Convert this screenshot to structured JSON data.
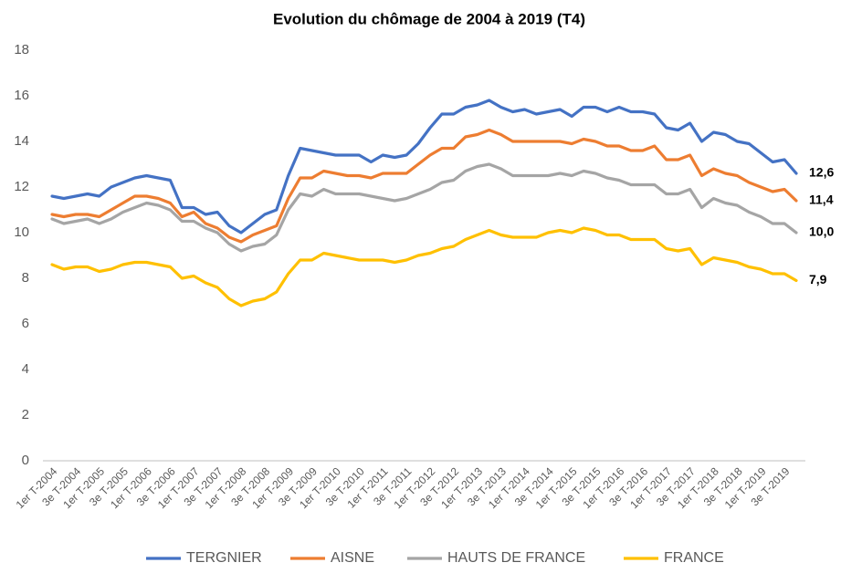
{
  "chart_data": {
    "type": "line",
    "title": "Evolution du chômage  de 2004 à 2019 (T4)",
    "categories": [
      "1er T-2004",
      null,
      "3e T-2004",
      null,
      "1er T-2005",
      null,
      "3e T-2005",
      null,
      "1er T-2006",
      null,
      "3e T-2006",
      null,
      "1er T-2007",
      null,
      "3e T-2007",
      null,
      "1er T-2008",
      null,
      "3e T-2008",
      null,
      "1er T-2009",
      null,
      "3e T-2009",
      null,
      "1er T-2010",
      null,
      "3e T-2010",
      null,
      "1er T-2011",
      null,
      "3e T-2011",
      null,
      "1er T-2012",
      null,
      "3e T-2012",
      null,
      "1er T-2013",
      null,
      "3e T-2013",
      null,
      "1er T-2014",
      null,
      "3e T-2014",
      null,
      "1er T-2015",
      null,
      "3e T-2015",
      null,
      "1er T-2016",
      null,
      "3e T-2016",
      null,
      "1er T-2017",
      null,
      "3e T-2017",
      null,
      "1er T-2018",
      null,
      "3e T-2018",
      null,
      "1er T-2019",
      null,
      "3e T-2019",
      null
    ],
    "series": [
      {
        "name": "TERGNIER",
        "color": "#4472c4",
        "values": [
          11.6,
          11.5,
          11.6,
          11.7,
          11.6,
          12.0,
          12.2,
          12.4,
          12.5,
          12.4,
          12.3,
          11.1,
          11.1,
          10.8,
          10.9,
          10.3,
          10.0,
          10.4,
          10.8,
          11.0,
          12.5,
          13.7,
          13.6,
          13.5,
          13.4,
          13.4,
          13.4,
          13.1,
          13.4,
          13.3,
          13.4,
          13.9,
          14.6,
          15.2,
          15.2,
          15.5,
          15.6,
          15.8,
          15.5,
          15.3,
          15.4,
          15.2,
          15.3,
          15.4,
          15.1,
          15.5,
          15.5,
          15.3,
          15.5,
          15.3,
          15.3,
          15.2,
          14.6,
          14.5,
          14.8,
          14.0,
          14.4,
          14.3,
          14.0,
          13.9,
          13.5,
          13.1,
          13.2,
          12.6
        ],
        "value_labels": [
          null,
          null,
          null,
          null,
          null,
          null,
          null,
          null,
          null,
          null,
          null,
          null,
          null,
          null,
          null,
          null,
          null,
          null,
          null,
          null,
          null,
          null,
          null,
          null,
          null,
          null,
          null,
          null,
          null,
          null,
          null,
          null,
          null,
          null,
          null,
          null,
          null,
          null,
          null,
          null,
          null,
          null,
          null,
          null,
          null,
          null,
          null,
          null,
          null,
          null,
          null,
          null,
          null,
          null,
          null,
          null,
          null,
          null,
          null,
          null,
          null,
          null,
          null,
          "12,6"
        ]
      },
      {
        "name": "AISNE",
        "color": "#ed7d31",
        "values": [
          10.8,
          10.7,
          10.8,
          10.8,
          10.7,
          11.0,
          11.3,
          11.6,
          11.6,
          11.5,
          11.3,
          10.7,
          10.9,
          10.4,
          10.2,
          9.8,
          9.6,
          9.9,
          10.1,
          10.3,
          11.5,
          12.4,
          12.4,
          12.7,
          12.6,
          12.5,
          12.5,
          12.4,
          12.6,
          12.6,
          12.6,
          13.0,
          13.4,
          13.7,
          13.7,
          14.2,
          14.3,
          14.5,
          14.3,
          14.0,
          14.0,
          14.0,
          14.0,
          14.0,
          13.9,
          14.1,
          14.0,
          13.8,
          13.8,
          13.6,
          13.6,
          13.8,
          13.2,
          13.2,
          13.4,
          12.5,
          12.8,
          12.6,
          12.5,
          12.2,
          12.0,
          11.8,
          11.9,
          11.4
        ],
        "value_labels": [
          null,
          null,
          null,
          null,
          null,
          null,
          null,
          null,
          null,
          null,
          null,
          null,
          null,
          null,
          null,
          null,
          null,
          null,
          null,
          null,
          null,
          null,
          null,
          null,
          null,
          null,
          null,
          null,
          null,
          null,
          null,
          null,
          null,
          null,
          null,
          null,
          null,
          null,
          null,
          null,
          null,
          null,
          null,
          null,
          null,
          null,
          null,
          null,
          null,
          null,
          null,
          null,
          null,
          null,
          null,
          null,
          null,
          null,
          null,
          null,
          null,
          null,
          null,
          "11,4"
        ]
      },
      {
        "name": "HAUTS DE FRANCE",
        "color": "#a5a5a5",
        "values": [
          10.6,
          10.4,
          10.5,
          10.6,
          10.4,
          10.6,
          10.9,
          11.1,
          11.3,
          11.2,
          11.0,
          10.5,
          10.5,
          10.2,
          10.0,
          9.5,
          9.2,
          9.4,
          9.5,
          9.9,
          11.0,
          11.7,
          11.6,
          11.9,
          11.7,
          11.7,
          11.7,
          11.6,
          11.5,
          11.4,
          11.5,
          11.7,
          11.9,
          12.2,
          12.3,
          12.7,
          12.9,
          13.0,
          12.8,
          12.5,
          12.5,
          12.5,
          12.5,
          12.6,
          12.5,
          12.7,
          12.6,
          12.4,
          12.3,
          12.1,
          12.1,
          12.1,
          11.7,
          11.7,
          11.9,
          11.1,
          11.5,
          11.3,
          11.2,
          10.9,
          10.7,
          10.4,
          10.4,
          10.0
        ],
        "value_labels": [
          null,
          null,
          null,
          null,
          null,
          null,
          null,
          null,
          null,
          null,
          null,
          null,
          null,
          null,
          null,
          null,
          null,
          null,
          null,
          null,
          null,
          null,
          null,
          null,
          null,
          null,
          null,
          null,
          null,
          null,
          null,
          null,
          null,
          null,
          null,
          null,
          null,
          null,
          null,
          null,
          null,
          null,
          null,
          null,
          null,
          null,
          null,
          null,
          null,
          null,
          null,
          null,
          null,
          null,
          null,
          null,
          null,
          null,
          null,
          null,
          null,
          null,
          null,
          "10,0"
        ]
      },
      {
        "name": "FRANCE",
        "color": "#ffc000",
        "values": [
          8.6,
          8.4,
          8.5,
          8.5,
          8.3,
          8.4,
          8.6,
          8.7,
          8.7,
          8.6,
          8.5,
          8.0,
          8.1,
          7.8,
          7.6,
          7.1,
          6.8,
          7.0,
          7.1,
          7.4,
          8.2,
          8.8,
          8.8,
          9.1,
          9.0,
          8.9,
          8.8,
          8.8,
          8.8,
          8.7,
          8.8,
          9.0,
          9.1,
          9.3,
          9.4,
          9.7,
          9.9,
          10.1,
          9.9,
          9.8,
          9.8,
          9.8,
          10.0,
          10.1,
          10.0,
          10.2,
          10.1,
          9.9,
          9.9,
          9.7,
          9.7,
          9.7,
          9.3,
          9.2,
          9.3,
          8.6,
          8.9,
          8.8,
          8.7,
          8.5,
          8.4,
          8.2,
          8.2,
          7.9
        ],
        "value_labels": [
          null,
          null,
          null,
          null,
          null,
          null,
          null,
          null,
          null,
          null,
          null,
          null,
          null,
          null,
          null,
          null,
          null,
          null,
          null,
          null,
          null,
          null,
          null,
          null,
          null,
          null,
          null,
          null,
          null,
          null,
          null,
          null,
          null,
          null,
          null,
          null,
          null,
          null,
          null,
          null,
          null,
          null,
          null,
          null,
          null,
          null,
          null,
          null,
          null,
          null,
          null,
          null,
          null,
          null,
          null,
          null,
          null,
          null,
          null,
          null,
          null,
          null,
          null,
          "7,9"
        ]
      }
    ],
    "ylim": [
      0,
      18
    ],
    "yticks": [
      0,
      2,
      4,
      6,
      8,
      10,
      12,
      14,
      16,
      18
    ],
    "grid": false,
    "legend": "bottom"
  }
}
